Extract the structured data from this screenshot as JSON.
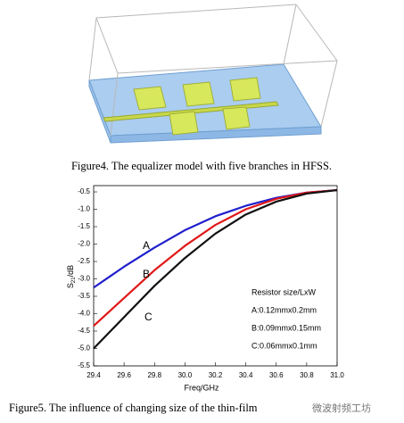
{
  "figure4": {
    "caption": "Figure4. The equalizer model with five branches in HFSS."
  },
  "chart_data": {
    "type": "line",
    "x_label": "Freq/GHz",
    "y_label": {
      "main": "S",
      "sub": "21",
      "unit": "/dB"
    },
    "x": [
      29.4,
      29.6,
      29.8,
      30.0,
      30.2,
      30.4,
      30.6,
      30.8,
      31.0
    ],
    "series": [
      {
        "name": "A",
        "color": "#1f1fcc",
        "values": [
          -3.25,
          -2.65,
          -2.1,
          -1.6,
          -1.2,
          -0.9,
          -0.67,
          -0.52,
          -0.45
        ]
      },
      {
        "name": "B",
        "color": "#e01818",
        "values": [
          -4.35,
          -3.55,
          -2.75,
          -2.05,
          -1.45,
          -1.0,
          -0.7,
          -0.52,
          -0.45
        ]
      },
      {
        "name": "C",
        "color": "#111111",
        "values": [
          -5.0,
          -4.1,
          -3.2,
          -2.4,
          -1.7,
          -1.15,
          -0.78,
          -0.55,
          -0.45
        ]
      }
    ],
    "xlim": [
      29.4,
      31.0
    ],
    "xticks": [
      29.4,
      29.6,
      29.8,
      {
        "value": 30.0,
        "label": "30.0"
      },
      30.2,
      30.4,
      30.6,
      30.8,
      {
        "value": 31.0,
        "label": "31.0"
      }
    ],
    "ylim": [
      -5.5,
      -0.32
    ],
    "yticks": [
      -0.5,
      {
        "value": -1.0,
        "label": "-1.0"
      },
      -1.5,
      {
        "value": -2.0,
        "label": "-2.0"
      },
      -2.5,
      {
        "value": -3.0,
        "label": "-3.0"
      },
      -3.5,
      {
        "value": -4.0,
        "label": "-4.0"
      },
      -4.5,
      {
        "value": -5.0,
        "label": "-5.0"
      },
      -5.5
    ],
    "annotation": [
      "Resistor size/LxW",
      "A:0.12mmx0.2mm",
      "B:0.09mmx0.15mm",
      "C:0.06mmx0.1mm"
    ]
  },
  "figure5": {
    "caption": "Figure5. The influence of changing size of the thin-film"
  },
  "watermark": "微波射频工坊"
}
